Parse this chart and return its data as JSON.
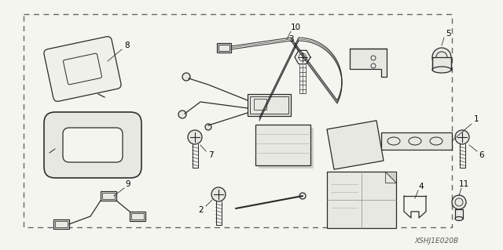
{
  "background_color": "#f5f5f0",
  "border_color": "#888888",
  "line_color": "#2a2a2a",
  "text_color": "#000000",
  "figsize": [
    6.4,
    3.19
  ],
  "dpi": 100,
  "watermark": "XSHJ1E020B"
}
